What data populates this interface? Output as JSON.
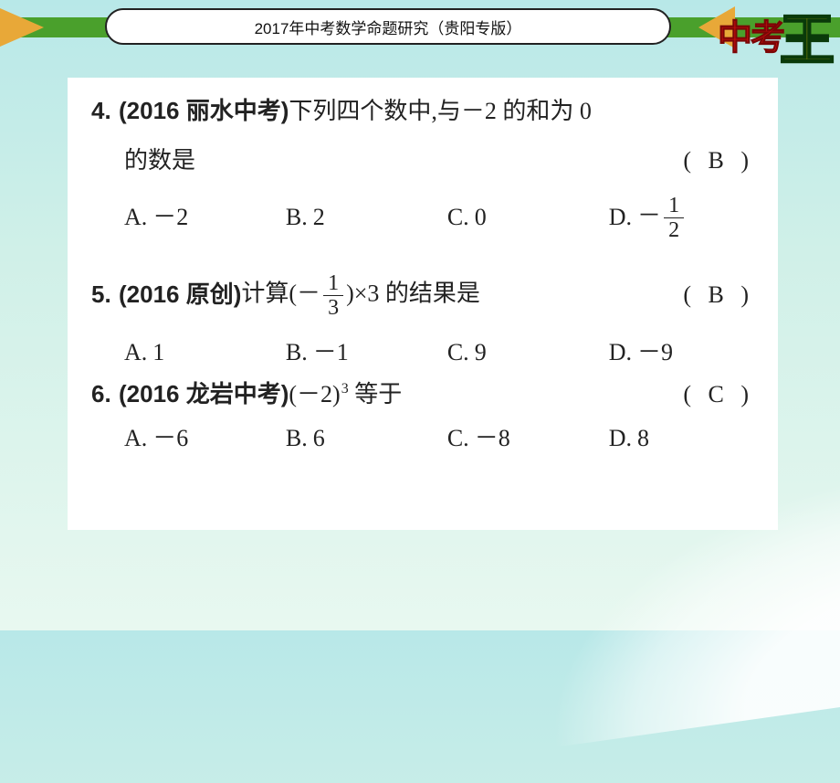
{
  "header": {
    "title": "2017年中考数学命题研究（贵阳专版）",
    "logo_cn": "中考",
    "logo_wang": "王",
    "colors": {
      "stripe": "#4aa02c",
      "accent": "#e8a838",
      "logo_red": "#d81010",
      "logo_yellow": "#f4d40a",
      "logo_stroke": "#0a3a0a"
    }
  },
  "q4": {
    "num": "4.",
    "source": "(2016 丽水中考)",
    "text1": "下列四个数中,与－2 的和为 0",
    "text2": "的数是",
    "answer": "( B )",
    "A": {
      "label": "A.",
      "val": "－2"
    },
    "B": {
      "label": "B.",
      "val": "2"
    },
    "C": {
      "label": "C.",
      "val": "0"
    },
    "D": {
      "label": "D.",
      "neg": "－",
      "num": "1",
      "den": "2"
    }
  },
  "q5": {
    "num": "5.",
    "source": "(2016 原创)",
    "pre": "计算(－",
    "frac": {
      "num": "1",
      "den": "3"
    },
    "post": ")×3 的结果是",
    "answer": "( B )",
    "A": {
      "label": "A.",
      "val": "1"
    },
    "B": {
      "label": "B.",
      "val": "－1"
    },
    "C": {
      "label": "C.",
      "val": "9"
    },
    "D": {
      "label": "D.",
      "val": "－9"
    }
  },
  "q6": {
    "num": "6.",
    "source": "(2016 龙岩中考)",
    "base": "(－2)",
    "exp": "3",
    "post": " 等于",
    "answer": "( C )",
    "A": {
      "label": "A.",
      "val": "－6"
    },
    "B": {
      "label": "B.",
      "val": "6"
    },
    "C": {
      "label": "C.",
      "val": "－8"
    },
    "D": {
      "label": "D.",
      "val": "8"
    }
  }
}
